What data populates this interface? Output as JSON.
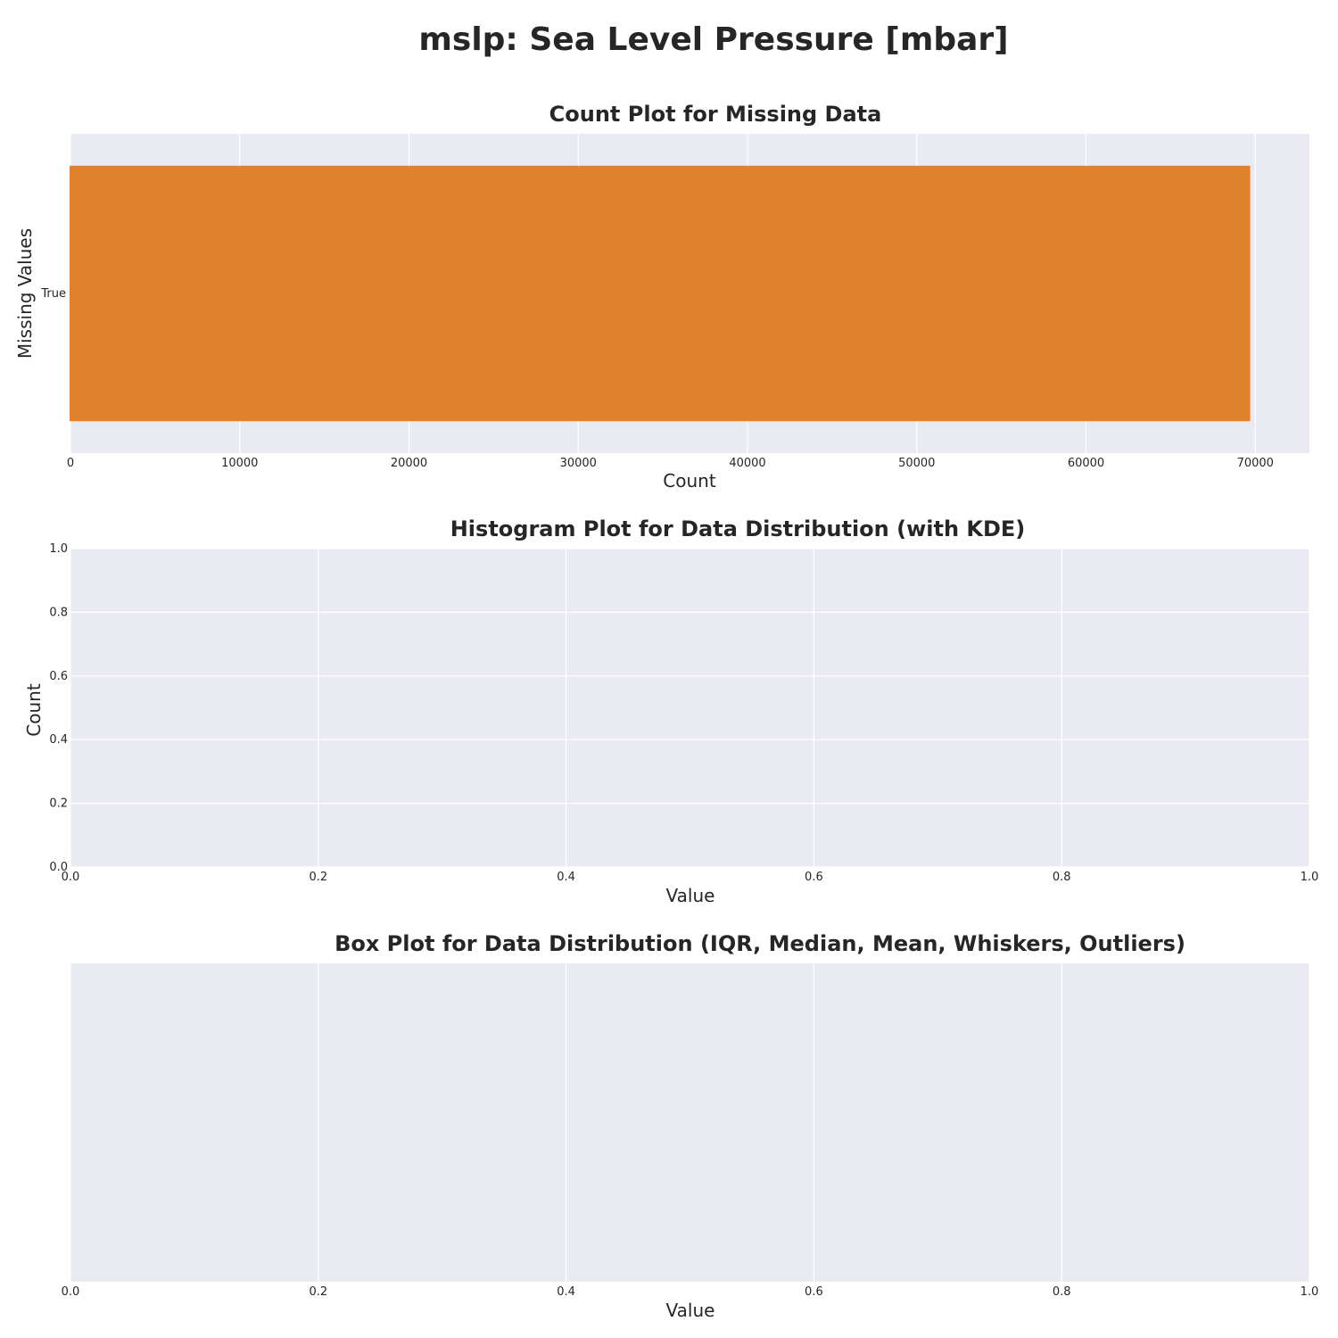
{
  "figure_title": "mslp: Sea Level Pressure [mbar]",
  "colors": {
    "panel_bg": "#eaeaf2",
    "grid": "#ffffff",
    "bar": "#e0812e",
    "text": "#262626"
  },
  "chart_data": [
    {
      "type": "bar",
      "orientation": "horizontal",
      "title": "Count Plot for Missing Data",
      "xlabel": "Count",
      "ylabel": "Missing Values",
      "categories": [
        "True"
      ],
      "values": [
        69700
      ],
      "xlim": [
        0,
        73200
      ],
      "xticks": [
        0,
        10000,
        20000,
        30000,
        40000,
        50000,
        60000,
        70000
      ],
      "xtick_labels": [
        "0",
        "10000",
        "20000",
        "30000",
        "40000",
        "50000",
        "60000",
        "70000"
      ],
      "grid": "x",
      "bar_color": "#e0812e"
    },
    {
      "type": "area",
      "title": "Histogram Plot for Data Distribution (with KDE)",
      "xlabel": "Value",
      "ylabel": "Count",
      "values": [],
      "xlim": [
        0,
        1
      ],
      "ylim": [
        0,
        1
      ],
      "xticks": [
        0,
        0.2,
        0.4,
        0.6,
        0.8,
        1.0
      ],
      "xtick_labels": [
        "0.0",
        "0.2",
        "0.4",
        "0.6",
        "0.8",
        "1.0"
      ],
      "yticks": [
        0,
        0.2,
        0.4,
        0.6,
        0.8,
        1.0
      ],
      "ytick_labels": [
        "0.0",
        "0.2",
        "0.4",
        "0.6",
        "0.8",
        "1.0"
      ],
      "grid": "both"
    },
    {
      "type": "box",
      "title": "Box Plot for Data Distribution (IQR, Median, Mean, Whiskers, Outliers)",
      "xlabel": "Value",
      "ylabel": "",
      "values": [],
      "xlim": [
        0,
        1
      ],
      "xticks": [
        0,
        0.2,
        0.4,
        0.6,
        0.8,
        1.0
      ],
      "xtick_labels": [
        "0.0",
        "0.2",
        "0.4",
        "0.6",
        "0.8",
        "1.0"
      ],
      "grid": "x"
    }
  ]
}
